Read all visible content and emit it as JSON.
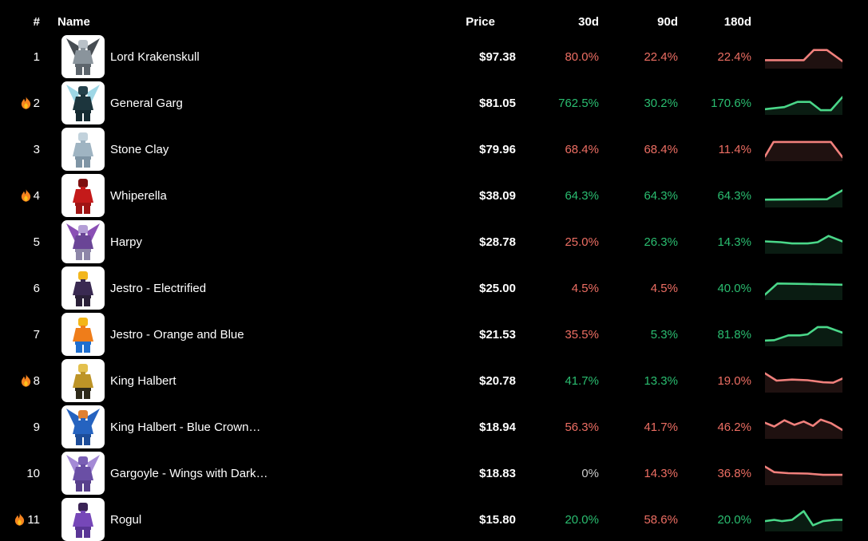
{
  "header": {
    "rank": "#",
    "name": "Name",
    "price": "Price",
    "d30": "30d",
    "d90": "90d",
    "d180": "180d"
  },
  "colors": {
    "up": "#2abd70",
    "down": "#ed6e63",
    "neutral": "#cccccc",
    "spark_up": "#4ad789",
    "spark_down": "#f0807c",
    "text": "#ffffff",
    "background": "#000000",
    "flame_outer": "#f5831f",
    "flame_inner": "#fcc21b"
  },
  "rows": [
    {
      "rank": "1",
      "hot": false,
      "name": "Lord Krakenskull",
      "price": "$97.38",
      "changes": [
        {
          "value": "80.0%",
          "dir": "down"
        },
        {
          "value": "22.4%",
          "dir": "down"
        },
        {
          "value": "22.4%",
          "dir": "down"
        }
      ],
      "spark": {
        "dir": "down",
        "points": [
          [
            0,
            0.33
          ],
          [
            0.5,
            0.33
          ],
          [
            0.63,
            0.82
          ],
          [
            0.8,
            0.82
          ],
          [
            1,
            0.28
          ]
        ]
      },
      "thumb": {
        "wings": "#474d53",
        "head": "#b9c1c8",
        "body": "#8a949c",
        "legs": "#5d656c"
      }
    },
    {
      "rank": "2",
      "hot": true,
      "name": "General Garg",
      "price": "$81.05",
      "changes": [
        {
          "value": "762.5%",
          "dir": "up"
        },
        {
          "value": "30.2%",
          "dir": "up"
        },
        {
          "value": "170.6%",
          "dir": "up"
        }
      ],
      "spark": {
        "dir": "up",
        "points": [
          [
            0,
            0.2
          ],
          [
            0.25,
            0.3
          ],
          [
            0.42,
            0.55
          ],
          [
            0.58,
            0.55
          ],
          [
            0.72,
            0.15
          ],
          [
            0.85,
            0.15
          ],
          [
            1,
            0.78
          ]
        ]
      },
      "thumb": {
        "wings": "#9ed7e6",
        "head": "#25424c",
        "body": "#1c353d",
        "legs": "#152a31"
      }
    },
    {
      "rank": "3",
      "hot": false,
      "name": "Stone Clay",
      "price": "$79.96",
      "changes": [
        {
          "value": "68.4%",
          "dir": "down"
        },
        {
          "value": "68.4%",
          "dir": "down"
        },
        {
          "value": "11.4%",
          "dir": "down"
        }
      ],
      "spark": {
        "dir": "down",
        "points": [
          [
            0,
            0.15
          ],
          [
            0.11,
            0.85
          ],
          [
            0.85,
            0.85
          ],
          [
            1,
            0.12
          ]
        ]
      },
      "thumb": {
        "wings": null,
        "head": "#c2d2dc",
        "body": "#9fb4c2",
        "legs": "#7f95a5"
      }
    },
    {
      "rank": "4",
      "hot": true,
      "name": "Whiperella",
      "price": "$38.09",
      "changes": [
        {
          "value": "64.3%",
          "dir": "up"
        },
        {
          "value": "64.3%",
          "dir": "up"
        },
        {
          "value": "64.3%",
          "dir": "up"
        }
      ],
      "spark": {
        "dir": "up",
        "points": [
          [
            0,
            0.3
          ],
          [
            0.8,
            0.32
          ],
          [
            1,
            0.75
          ]
        ]
      },
      "thumb": {
        "wings": null,
        "head": "#7e1010",
        "body": "#c41a1a",
        "legs": "#a01414"
      }
    },
    {
      "rank": "5",
      "hot": false,
      "name": "Harpy",
      "price": "$28.78",
      "changes": [
        {
          "value": "25.0%",
          "dir": "down"
        },
        {
          "value": "26.3%",
          "dir": "up"
        },
        {
          "value": "14.3%",
          "dir": "up"
        }
      ],
      "spark": {
        "dir": "up",
        "points": [
          [
            0,
            0.52
          ],
          [
            0.2,
            0.48
          ],
          [
            0.35,
            0.42
          ],
          [
            0.55,
            0.42
          ],
          [
            0.68,
            0.48
          ],
          [
            0.82,
            0.78
          ],
          [
            1,
            0.52
          ]
        ]
      },
      "thumb": {
        "wings": "#8a4fb5",
        "head": "#b49ed6",
        "body": "#6a4596",
        "legs": "#8d86a8"
      }
    },
    {
      "rank": "6",
      "hot": false,
      "name": "Jestro - Electrified",
      "price": "$25.00",
      "changes": [
        {
          "value": "4.5%",
          "dir": "down"
        },
        {
          "value": "4.5%",
          "dir": "down"
        },
        {
          "value": "40.0%",
          "dir": "up"
        }
      ],
      "spark": {
        "dir": "up",
        "points": [
          [
            0,
            0.18
          ],
          [
            0.16,
            0.72
          ],
          [
            0.5,
            0.7
          ],
          [
            1,
            0.66
          ]
        ]
      },
      "thumb": {
        "wings": null,
        "head": "#f2b61d",
        "body": "#3a2a52",
        "legs": "#2a2038"
      }
    },
    {
      "rank": "7",
      "hot": false,
      "name": "Jestro - Orange and Blue",
      "price": "$21.53",
      "changes": [
        {
          "value": "35.5%",
          "dir": "down"
        },
        {
          "value": "5.3%",
          "dir": "up"
        },
        {
          "value": "81.8%",
          "dir": "up"
        }
      ],
      "spark": {
        "dir": "up",
        "points": [
          [
            0,
            0.2
          ],
          [
            0.12,
            0.22
          ],
          [
            0.3,
            0.45
          ],
          [
            0.45,
            0.45
          ],
          [
            0.55,
            0.5
          ],
          [
            0.68,
            0.85
          ],
          [
            0.8,
            0.85
          ],
          [
            1,
            0.58
          ]
        ]
      },
      "thumb": {
        "wings": null,
        "head": "#f3b617",
        "body": "#ef7d1a",
        "legs": "#1f6fd0"
      }
    },
    {
      "rank": "8",
      "hot": true,
      "name": "King Halbert",
      "price": "$20.78",
      "changes": [
        {
          "value": "41.7%",
          "dir": "up"
        },
        {
          "value": "13.3%",
          "dir": "up"
        },
        {
          "value": "19.0%",
          "dir": "down"
        }
      ],
      "spark": {
        "dir": "down",
        "points": [
          [
            0,
            0.85
          ],
          [
            0.15,
            0.5
          ],
          [
            0.35,
            0.55
          ],
          [
            0.55,
            0.52
          ],
          [
            0.75,
            0.42
          ],
          [
            0.88,
            0.4
          ],
          [
            1,
            0.6
          ]
        ]
      },
      "thumb": {
        "wings": null,
        "head": "#e3c04e",
        "body": "#bd9427",
        "legs": "#2e2a1a"
      }
    },
    {
      "rank": "9",
      "hot": false,
      "name": "King Halbert - Blue Crown…",
      "price": "$18.94",
      "changes": [
        {
          "value": "56.3%",
          "dir": "down"
        },
        {
          "value": "41.7%",
          "dir": "down"
        },
        {
          "value": "46.2%",
          "dir": "down"
        }
      ],
      "spark": {
        "dir": "down",
        "points": [
          [
            0,
            0.7
          ],
          [
            0.12,
            0.52
          ],
          [
            0.25,
            0.82
          ],
          [
            0.38,
            0.6
          ],
          [
            0.5,
            0.76
          ],
          [
            0.62,
            0.55
          ],
          [
            0.72,
            0.85
          ],
          [
            0.85,
            0.68
          ],
          [
            1,
            0.35
          ]
        ]
      },
      "thumb": {
        "wings": "#2563c0",
        "head": "#e08030",
        "body": "#2563c0",
        "legs": "#1d4d99"
      }
    },
    {
      "rank": "10",
      "hot": false,
      "name": "Gargoyle - Wings with Dark…",
      "price": "$18.83",
      "changes": [
        {
          "value": "0%",
          "dir": "neutral"
        },
        {
          "value": "14.3%",
          "dir": "down"
        },
        {
          "value": "36.8%",
          "dir": "down"
        }
      ],
      "spark": {
        "dir": "down",
        "points": [
          [
            0,
            0.82
          ],
          [
            0.12,
            0.55
          ],
          [
            0.3,
            0.5
          ],
          [
            0.55,
            0.48
          ],
          [
            0.75,
            0.42
          ],
          [
            1,
            0.42
          ]
        ]
      },
      "thumb": {
        "wings": "#a48ad6",
        "head": "#7a5fb5",
        "body": "#6a4fa5",
        "legs": "#58408c"
      }
    },
    {
      "rank": "11",
      "hot": true,
      "name": "Rogul",
      "price": "$15.80",
      "changes": [
        {
          "value": "20.0%",
          "dir": "up"
        },
        {
          "value": "58.6%",
          "dir": "down"
        },
        {
          "value": "20.0%",
          "dir": "up"
        }
      ],
      "spark": {
        "dir": "up",
        "points": [
          [
            0,
            0.42
          ],
          [
            0.12,
            0.48
          ],
          [
            0.22,
            0.42
          ],
          [
            0.35,
            0.48
          ],
          [
            0.5,
            0.9
          ],
          [
            0.62,
            0.22
          ],
          [
            0.75,
            0.42
          ],
          [
            0.9,
            0.48
          ],
          [
            1,
            0.48
          ]
        ]
      },
      "thumb": {
        "wings": null,
        "head": "#3a2355",
        "body": "#7647b8",
        "legs": "#5a3596"
      }
    }
  ]
}
